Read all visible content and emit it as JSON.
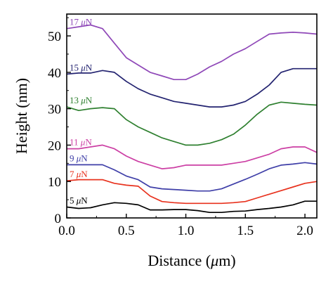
{
  "chart_data": {
    "type": "line",
    "xlabel_parts": [
      "Distance (",
      "μ",
      "m)"
    ],
    "ylabel": "Height (nm)",
    "xlim": [
      0.0,
      2.1
    ],
    "ylim": [
      0,
      56
    ],
    "xticks": [
      0.0,
      0.5,
      1.0,
      1.5,
      2.0
    ],
    "xtick_labels": [
      "0.0",
      "0.5",
      "1.0",
      "1.5",
      "2.0"
    ],
    "yticks": [
      0,
      10,
      20,
      30,
      40,
      50
    ],
    "ytick_labels": [
      "0",
      "10",
      "20",
      "30",
      "40",
      "50"
    ],
    "grid": false,
    "legend": "none",
    "series": [
      {
        "name": "5 μN",
        "label_parts": [
          "5 ",
          "μ",
          "N"
        ],
        "color": "#000000",
        "x": [
          0.0,
          0.1,
          0.2,
          0.3,
          0.4,
          0.5,
          0.6,
          0.7,
          0.8,
          0.9,
          1.0,
          1.1,
          1.2,
          1.3,
          1.4,
          1.5,
          1.6,
          1.7,
          1.8,
          1.9,
          2.0,
          2.1
        ],
        "y": [
          3.0,
          2.6,
          2.8,
          3.6,
          4.2,
          4.0,
          3.6,
          2.2,
          2.2,
          2.3,
          2.3,
          2.0,
          1.5,
          1.5,
          1.8,
          1.9,
          2.3,
          2.6,
          3.0,
          3.6,
          4.6,
          4.6
        ]
      },
      {
        "name": "7 μN",
        "label_parts": [
          "7 ",
          "μ",
          "N"
        ],
        "color": "#e8321e",
        "x": [
          0.0,
          0.1,
          0.2,
          0.3,
          0.4,
          0.5,
          0.6,
          0.7,
          0.8,
          0.9,
          1.0,
          1.1,
          1.2,
          1.3,
          1.4,
          1.5,
          1.6,
          1.7,
          1.8,
          1.9,
          2.0,
          2.1
        ],
        "y": [
          10.2,
          10.5,
          10.5,
          10.5,
          9.5,
          9.0,
          8.7,
          6.0,
          4.5,
          4.2,
          4.0,
          4.0,
          4.0,
          4.0,
          4.2,
          4.5,
          5.5,
          6.5,
          7.5,
          8.5,
          9.5,
          10.0
        ]
      },
      {
        "name": "9 μN",
        "label_parts": [
          "9 ",
          "μ",
          "N"
        ],
        "color": "#3f3fa8",
        "x": [
          0.0,
          0.1,
          0.2,
          0.3,
          0.4,
          0.5,
          0.6,
          0.7,
          0.8,
          0.9,
          1.0,
          1.1,
          1.2,
          1.3,
          1.4,
          1.5,
          1.6,
          1.7,
          1.8,
          1.9,
          2.0,
          2.1
        ],
        "y": [
          14.6,
          14.6,
          14.6,
          14.6,
          13.2,
          11.5,
          10.5,
          8.5,
          8.0,
          7.8,
          7.6,
          7.4,
          7.4,
          8.0,
          9.3,
          10.6,
          12.0,
          13.5,
          14.5,
          14.8,
          15.2,
          14.8
        ]
      },
      {
        "name": "11 μN",
        "label_parts": [
          "11 ",
          "μ",
          "N"
        ],
        "color": "#cc3fa4",
        "x": [
          0.0,
          0.1,
          0.2,
          0.3,
          0.4,
          0.5,
          0.6,
          0.7,
          0.8,
          0.9,
          1.0,
          1.1,
          1.2,
          1.3,
          1.4,
          1.5,
          1.6,
          1.7,
          1.8,
          1.9,
          2.0,
          2.1
        ],
        "y": [
          19.0,
          19.0,
          19.5,
          20.0,
          19.0,
          17.0,
          15.5,
          14.5,
          13.5,
          13.8,
          14.5,
          14.5,
          14.5,
          14.5,
          15.0,
          15.5,
          16.5,
          17.5,
          19.0,
          19.5,
          19.5,
          18.0
        ]
      },
      {
        "name": "13 μN",
        "label_parts": [
          "13 ",
          "μ",
          "N"
        ],
        "color": "#2f8030",
        "x": [
          0.0,
          0.1,
          0.2,
          0.3,
          0.4,
          0.5,
          0.6,
          0.7,
          0.8,
          0.9,
          1.0,
          1.1,
          1.2,
          1.3,
          1.4,
          1.5,
          1.6,
          1.7,
          1.8,
          1.9,
          2.0,
          2.1
        ],
        "y": [
          30.5,
          29.5,
          30.0,
          30.3,
          30.0,
          27.0,
          25.0,
          23.5,
          22.0,
          21.0,
          20.0,
          20.0,
          20.5,
          21.5,
          23.0,
          25.5,
          28.5,
          31.0,
          31.8,
          31.5,
          31.2,
          31.0
        ]
      },
      {
        "name": "15 μN",
        "label_parts": [
          "15 ",
          "μ",
          "N"
        ],
        "color": "#232370",
        "x": [
          0.0,
          0.1,
          0.2,
          0.3,
          0.4,
          0.5,
          0.6,
          0.7,
          0.8,
          0.9,
          1.0,
          1.1,
          1.2,
          1.3,
          1.4,
          1.5,
          1.6,
          1.7,
          1.8,
          1.9,
          2.0,
          2.1
        ],
        "y": [
          39.5,
          39.8,
          39.8,
          40.5,
          40.0,
          37.5,
          35.5,
          34.0,
          33.0,
          32.0,
          31.5,
          31.0,
          30.5,
          30.5,
          31.0,
          32.0,
          34.0,
          36.5,
          40.0,
          41.0,
          41.0,
          41.0
        ]
      },
      {
        "name": "17 μN",
        "label_parts": [
          "17 ",
          "μ",
          "N"
        ],
        "color": "#8f48b8",
        "x": [
          0.0,
          0.1,
          0.2,
          0.3,
          0.4,
          0.5,
          0.6,
          0.7,
          0.8,
          0.9,
          1.0,
          1.1,
          1.2,
          1.3,
          1.4,
          1.5,
          1.6,
          1.7,
          1.8,
          1.9,
          2.0,
          2.1
        ],
        "y": [
          52.0,
          52.5,
          53.0,
          52.0,
          48.0,
          44.0,
          42.0,
          40.0,
          39.0,
          38.0,
          38.0,
          39.5,
          41.5,
          43.0,
          45.0,
          46.5,
          48.5,
          50.5,
          50.8,
          51.0,
          50.8,
          50.5
        ]
      }
    ]
  }
}
